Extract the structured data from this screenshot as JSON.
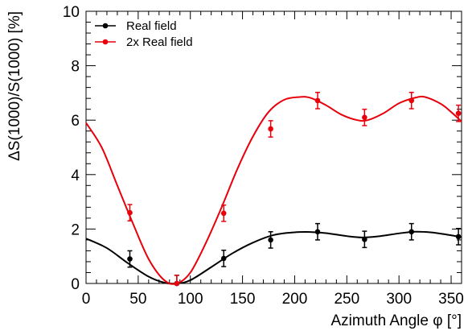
{
  "chart_data": {
    "type": "scatter",
    "xlabel": "Azimuth Angle φ [°]",
    "ylabel": "ΔS(1000)/S(1000) [%]",
    "xlim": [
      0,
      360
    ],
    "ylim": [
      0,
      10
    ],
    "x_ticks": [
      "0",
      "50",
      "100",
      "150",
      "200",
      "250",
      "300",
      "350"
    ],
    "y_ticks": [
      "0",
      "2",
      "4",
      "6",
      "8",
      "10"
    ],
    "grid": false,
    "legend_position": "top-left",
    "series": [
      {
        "name": "Real field",
        "color": "#000000",
        "points": [
          {
            "x": 42,
            "y": 0.9,
            "err": 0.3
          },
          {
            "x": 87,
            "y": 0.0,
            "err": 0.3
          },
          {
            "x": 132,
            "y": 0.92,
            "err": 0.3
          },
          {
            "x": 177,
            "y": 1.6,
            "err": 0.3
          },
          {
            "x": 222,
            "y": 1.9,
            "err": 0.3
          },
          {
            "x": 267,
            "y": 1.62,
            "err": 0.3
          },
          {
            "x": 312,
            "y": 1.9,
            "err": 0.3
          },
          {
            "x": 357,
            "y": 1.72,
            "err": 0.3
          }
        ],
        "fit": [
          [
            0,
            1.65
          ],
          [
            20,
            1.3
          ],
          [
            40,
            0.75
          ],
          [
            60,
            0.25
          ],
          [
            75,
            0.03
          ],
          [
            87,
            0.0
          ],
          [
            100,
            0.12
          ],
          [
            120,
            0.6
          ],
          [
            140,
            1.1
          ],
          [
            160,
            1.5
          ],
          [
            180,
            1.78
          ],
          [
            200,
            1.88
          ],
          [
            215,
            1.89
          ],
          [
            230,
            1.85
          ],
          [
            250,
            1.74
          ],
          [
            265,
            1.69
          ],
          [
            280,
            1.73
          ],
          [
            300,
            1.84
          ],
          [
            315,
            1.9
          ],
          [
            330,
            1.88
          ],
          [
            345,
            1.8
          ],
          [
            360,
            1.7
          ]
        ]
      },
      {
        "name": "2x Real field",
        "color": "#e8000b",
        "points": [
          {
            "x": 42,
            "y": 2.6,
            "err": 0.3
          },
          {
            "x": 87,
            "y": 0.0,
            "err": 0.3
          },
          {
            "x": 132,
            "y": 2.58,
            "err": 0.3
          },
          {
            "x": 177,
            "y": 5.68,
            "err": 0.3
          },
          {
            "x": 222,
            "y": 6.72,
            "err": 0.3
          },
          {
            "x": 267,
            "y": 6.1,
            "err": 0.3
          },
          {
            "x": 312,
            "y": 6.72,
            "err": 0.3
          },
          {
            "x": 357,
            "y": 6.25,
            "err": 0.3
          }
        ],
        "fit": [
          [
            0,
            5.9
          ],
          [
            15,
            5.0
          ],
          [
            30,
            3.6
          ],
          [
            45,
            2.2
          ],
          [
            60,
            0.9
          ],
          [
            75,
            0.12
          ],
          [
            87,
            0.0
          ],
          [
            100,
            0.4
          ],
          [
            115,
            1.5
          ],
          [
            130,
            2.8
          ],
          [
            145,
            4.2
          ],
          [
            160,
            5.4
          ],
          [
            175,
            6.3
          ],
          [
            190,
            6.75
          ],
          [
            205,
            6.85
          ],
          [
            215,
            6.82
          ],
          [
            230,
            6.55
          ],
          [
            245,
            6.2
          ],
          [
            260,
            6.0
          ],
          [
            270,
            6.0
          ],
          [
            285,
            6.25
          ],
          [
            300,
            6.62
          ],
          [
            315,
            6.82
          ],
          [
            325,
            6.85
          ],
          [
            340,
            6.6
          ],
          [
            350,
            6.3
          ],
          [
            360,
            5.95
          ]
        ]
      }
    ]
  }
}
